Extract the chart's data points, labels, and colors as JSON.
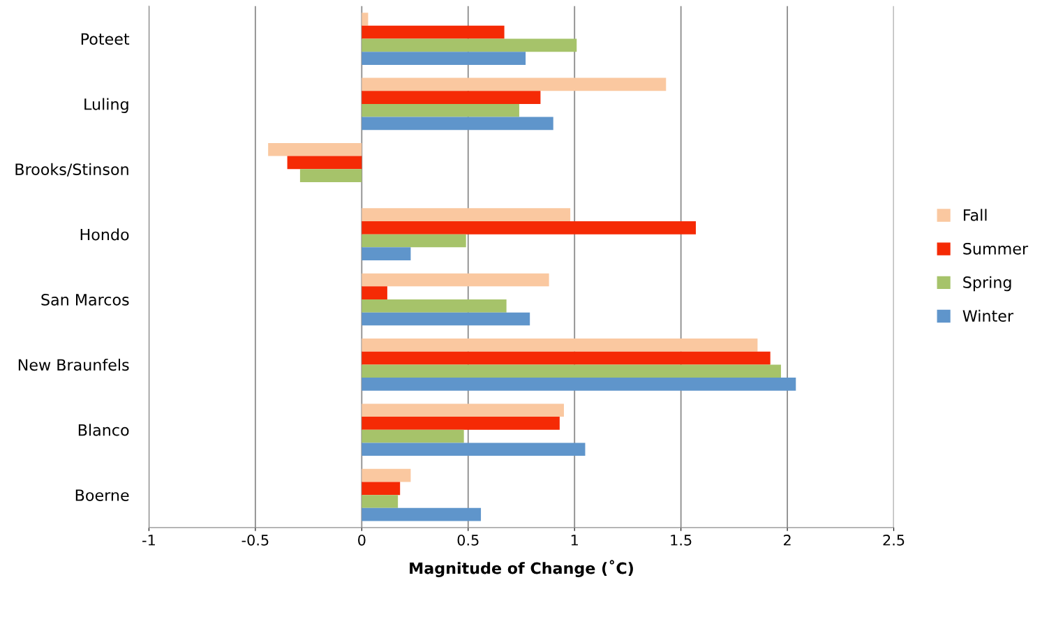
{
  "chart_data": {
    "type": "bar",
    "orientation": "horizontal",
    "xlabel": "Magnitude of Change (˚C)",
    "categories": [
      "Poteet",
      "Luling",
      "Brooks/Stinson",
      "Hondo",
      "San Marcos",
      "New Braunfels",
      "Blanco",
      "Boerne"
    ],
    "series": [
      {
        "name": "Fall",
        "color": "#fac8a0",
        "values": [
          0.03,
          1.43,
          -0.44,
          0.98,
          0.88,
          1.86,
          0.95,
          0.23
        ]
      },
      {
        "name": "Summer",
        "color": "#f52a05",
        "values": [
          0.67,
          0.84,
          -0.35,
          1.57,
          0.12,
          1.92,
          0.93,
          0.18
        ]
      },
      {
        "name": "Spring",
        "color": "#a6c36a",
        "values": [
          1.01,
          0.74,
          -0.29,
          0.49,
          0.68,
          1.97,
          0.48,
          0.17
        ]
      },
      {
        "name": "Winter",
        "color": "#5f95cb",
        "values": [
          0.77,
          0.9,
          null,
          0.23,
          0.79,
          2.04,
          1.05,
          0.56
        ]
      }
    ],
    "xlim": [
      -1,
      2.5
    ],
    "xticks": [
      -1,
      -0.5,
      0,
      0.5,
      1,
      1.5,
      2,
      2.5
    ],
    "grid": "x",
    "legend": "right"
  }
}
